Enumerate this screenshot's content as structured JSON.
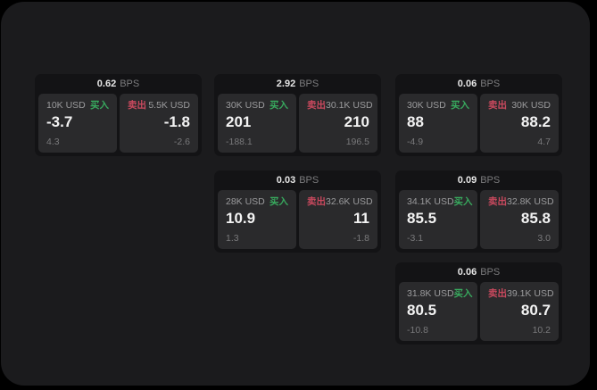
{
  "labels": {
    "buy": "买入",
    "sell": "卖出",
    "bps_suffix": "BPS"
  },
  "colors": {
    "buy_green": "#38a95e",
    "sell_red": "#c9495e",
    "surface": "#1b1b1d",
    "card": "#131315",
    "panel": "#2a2a2c"
  },
  "cards": [
    {
      "bps": "0.62",
      "col": 1,
      "row": 1,
      "buy": {
        "amount": "10K USD",
        "value": "-3.7",
        "sub": "4.3"
      },
      "sell": {
        "amount": "5.5K USD",
        "value": "-1.8",
        "sub": "-2.6"
      }
    },
    {
      "bps": "2.92",
      "col": 2,
      "row": 1,
      "buy": {
        "amount": "30K USD",
        "value": "201",
        "sub": "-188.1"
      },
      "sell": {
        "amount": "30.1K USD",
        "value": "210",
        "sub": "196.5"
      }
    },
    {
      "bps": "0.06",
      "col": 3,
      "row": 1,
      "buy": {
        "amount": "30K USD",
        "value": "88",
        "sub": "-4.9"
      },
      "sell": {
        "amount": "30K USD",
        "value": "88.2",
        "sub": "4.7"
      }
    },
    {
      "bps": "0.03",
      "col": 2,
      "row": 2,
      "buy": {
        "amount": "28K USD",
        "value": "10.9",
        "sub": "1.3"
      },
      "sell": {
        "amount": "32.6K USD",
        "value": "11",
        "sub": "-1.8"
      }
    },
    {
      "bps": "0.09",
      "col": 3,
      "row": 2,
      "buy": {
        "amount": "34.1K USD",
        "value": "85.5",
        "sub": "-3.1"
      },
      "sell": {
        "amount": "32.8K USD",
        "value": "85.8",
        "sub": "3.0"
      }
    },
    {
      "bps": "0.06",
      "col": 3,
      "row": 3,
      "buy": {
        "amount": "31.8K USD",
        "value": "80.5",
        "sub": "-10.8"
      },
      "sell": {
        "amount": "39.1K USD",
        "value": "80.7",
        "sub": "10.2"
      }
    }
  ]
}
